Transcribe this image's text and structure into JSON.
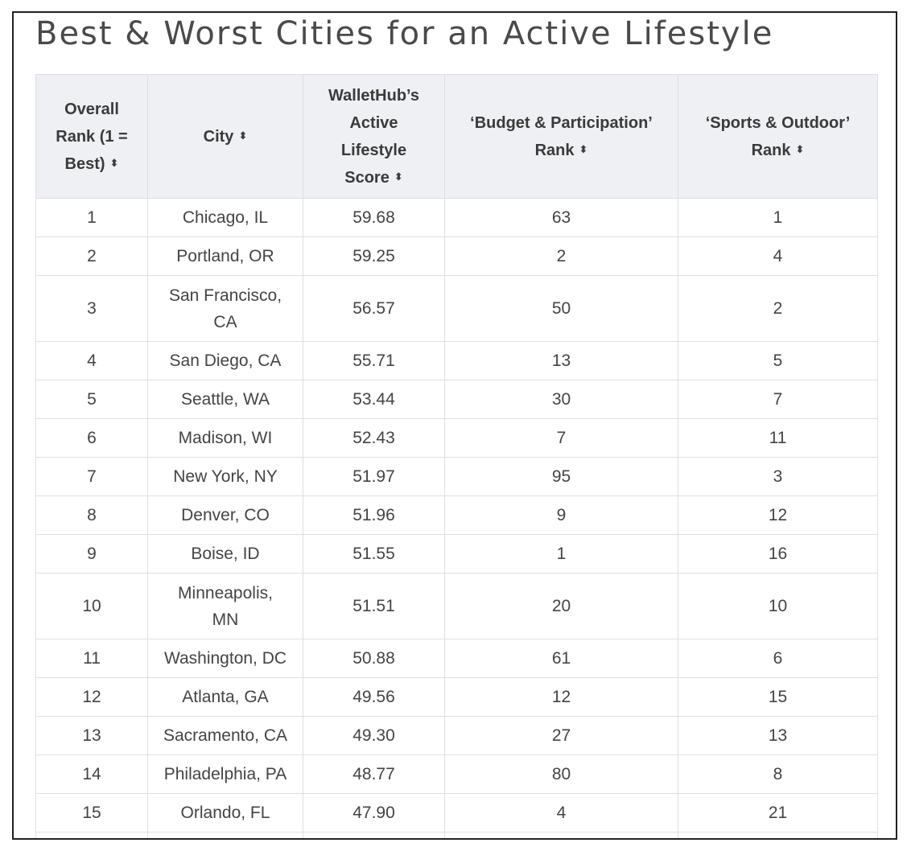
{
  "title": "Best & Worst Cities for an Active Lifestyle",
  "columns": {
    "overall_rank": "Overall Rank (1 = Best)",
    "city": "City",
    "score": "WalletHub’s Active Lifestyle Score",
    "budget": "‘Budget & Participation’ Rank",
    "sports": "‘Sports & Outdoor’ Rank"
  },
  "sort_icon": "sort-arrows-icon",
  "rows": [
    {
      "rank": "1",
      "city": "Chicago, IL",
      "score": "59.68",
      "budget": "63",
      "sports": "1"
    },
    {
      "rank": "2",
      "city": "Portland, OR",
      "score": "59.25",
      "budget": "2",
      "sports": "4"
    },
    {
      "rank": "3",
      "city": "San Francisco, CA",
      "score": "56.57",
      "budget": "50",
      "sports": "2"
    },
    {
      "rank": "4",
      "city": "San Diego, CA",
      "score": "55.71",
      "budget": "13",
      "sports": "5"
    },
    {
      "rank": "5",
      "city": "Seattle, WA",
      "score": "53.44",
      "budget": "30",
      "sports": "7"
    },
    {
      "rank": "6",
      "city": "Madison, WI",
      "score": "52.43",
      "budget": "7",
      "sports": "11"
    },
    {
      "rank": "7",
      "city": "New York, NY",
      "score": "51.97",
      "budget": "95",
      "sports": "3"
    },
    {
      "rank": "8",
      "city": "Denver, CO",
      "score": "51.96",
      "budget": "9",
      "sports": "12"
    },
    {
      "rank": "9",
      "city": "Boise, ID",
      "score": "51.55",
      "budget": "1",
      "sports": "16"
    },
    {
      "rank": "10",
      "city": "Minneapolis, MN",
      "score": "51.51",
      "budget": "20",
      "sports": "10"
    },
    {
      "rank": "11",
      "city": "Washington, DC",
      "score": "50.88",
      "budget": "61",
      "sports": "6"
    },
    {
      "rank": "12",
      "city": "Atlanta, GA",
      "score": "49.56",
      "budget": "12",
      "sports": "15"
    },
    {
      "rank": "13",
      "city": "Sacramento, CA",
      "score": "49.30",
      "budget": "27",
      "sports": "13"
    },
    {
      "rank": "14",
      "city": "Philadelphia, PA",
      "score": "48.77",
      "budget": "80",
      "sports": "8"
    },
    {
      "rank": "15",
      "city": "Orlando, FL",
      "score": "47.90",
      "budget": "4",
      "sports": "21"
    }
  ]
}
